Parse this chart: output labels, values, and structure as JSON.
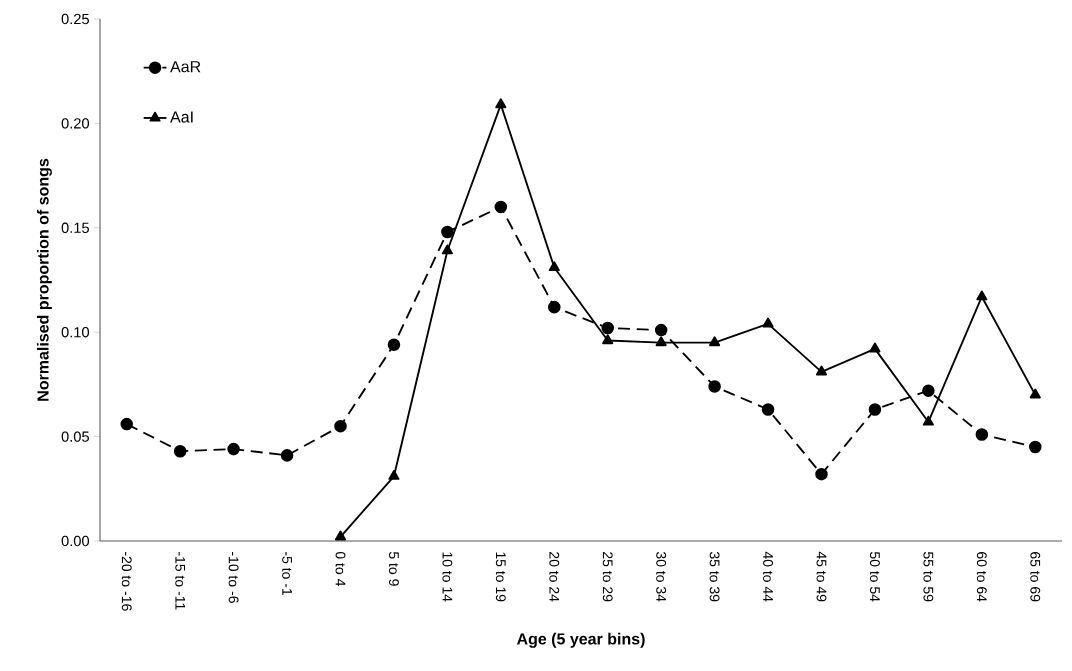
{
  "chart_data": {
    "type": "line",
    "xlabel": "Age (5 year bins)",
    "ylabel": "Normalised proportion of songs",
    "categories": [
      "-20 to -16",
      "-15 to -11",
      "-10 to -6",
      "-5 to -1",
      "0 to 4",
      "5 to 9",
      "10 to 14",
      "15 to 19",
      "20 to 24",
      "25 to 29",
      "30 to 34",
      "35 to 39",
      "40 to 44",
      "45 to 49",
      "50 to 54",
      "55 to 59",
      "60 to 64",
      "65 to 69"
    ],
    "series": [
      {
        "name": "AaR",
        "color": "#000000",
        "marker": "circle",
        "line_style": "dashed",
        "values": [
          0.056,
          0.043,
          0.044,
          0.041,
          0.055,
          0.094,
          0.148,
          0.16,
          0.112,
          0.102,
          0.101,
          0.074,
          0.063,
          0.032,
          0.063,
          0.072,
          0.051,
          0.045
        ]
      },
      {
        "name": "AaI",
        "color": "#000000",
        "marker": "triangle",
        "line_style": "solid",
        "values": [
          null,
          null,
          null,
          null,
          0.002,
          0.031,
          0.139,
          0.209,
          0.131,
          0.096,
          0.095,
          0.095,
          0.104,
          0.081,
          0.092,
          0.057,
          0.117,
          0.07
        ]
      }
    ],
    "ylim": [
      0,
      0.25
    ],
    "yticks": [
      {
        "value": 0,
        "label": "0.00"
      },
      0.05,
      {
        "value": 0.1,
        "label": "0.10"
      },
      0.15,
      {
        "value": 0.2,
        "label": "0.20"
      },
      0.25
    ],
    "grid": false,
    "legend": "top left"
  }
}
